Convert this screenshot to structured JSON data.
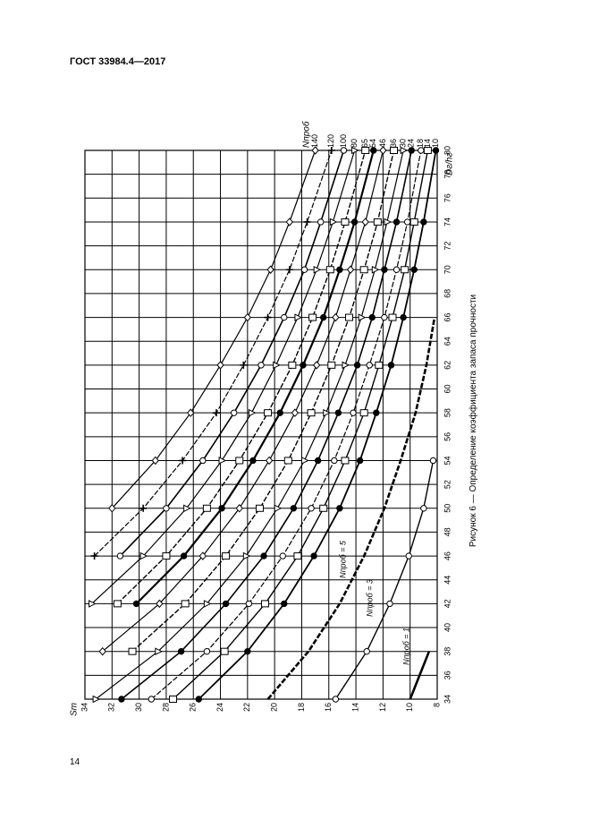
{
  "header": {
    "title": "ГОСТ 33984.4—2017"
  },
  "page_number": "14",
  "caption": "Рисунок 6 — Определение коэффициента запаса прочности",
  "chart_data": {
    "type": "line",
    "x_label": "Dг/hг",
    "y_label": "Sт",
    "legend_title": "Nпроб",
    "x": [
      34,
      38,
      42,
      46,
      50,
      54,
      58,
      62,
      66,
      70,
      74,
      80
    ],
    "xlim": [
      34,
      80
    ],
    "ylim": [
      8,
      34
    ],
    "xticks": [
      34,
      36,
      38,
      40,
      42,
      44,
      46,
      48,
      50,
      52,
      54,
      56,
      58,
      60,
      62,
      64,
      66,
      68,
      70,
      72,
      74,
      76,
      78,
      80
    ],
    "yticks": [
      8,
      10,
      12,
      14,
      16,
      18,
      20,
      22,
      24,
      26,
      28,
      30,
      32,
      34
    ],
    "grid": true,
    "series": [
      {
        "name": "140",
        "color": "#000",
        "marker": "diamond",
        "values": [
          null,
          null,
          null,
          null,
          32.0,
          28.8,
          26.2,
          24.0,
          22.0,
          20.3,
          18.9,
          17.0
        ]
      },
      {
        "name": "120",
        "color": "#000",
        "marker": "plus",
        "values": [
          null,
          null,
          null,
          33.3,
          29.7,
          26.8,
          24.3,
          22.3,
          20.5,
          18.9,
          17.6,
          15.8
        ]
      },
      {
        "name": "100",
        "color": "#000",
        "marker": "circle",
        "values": [
          null,
          null,
          null,
          31.4,
          28.0,
          25.3,
          23.0,
          21.0,
          19.3,
          17.8,
          16.6,
          14.9
        ]
      },
      {
        "name": "80",
        "color": "#000",
        "marker": "triangle",
        "values": [
          null,
          null,
          33.5,
          29.7,
          26.5,
          23.9,
          21.7,
          19.9,
          18.3,
          16.9,
          15.7,
          14.1
        ]
      },
      {
        "name": "65",
        "color": "#000",
        "marker": "square",
        "values": [
          null,
          null,
          31.6,
          28.0,
          25.0,
          22.6,
          20.5,
          18.7,
          17.2,
          15.9,
          14.8,
          13.3
        ]
      },
      {
        "name": "54",
        "color": "#000",
        "marker": "dot",
        "values": [
          null,
          null,
          30.2,
          26.7,
          23.9,
          21.6,
          19.6,
          17.9,
          16.4,
          15.2,
          14.1,
          12.7
        ]
      },
      {
        "name": "46",
        "color": "#000",
        "marker": "diamond",
        "values": [
          null,
          32.7,
          28.5,
          25.3,
          22.6,
          20.4,
          18.5,
          16.9,
          15.5,
          14.4,
          13.3,
          12.0
        ]
      },
      {
        "name": "36",
        "color": "#000",
        "marker": "square",
        "values": [
          null,
          30.5,
          26.6,
          23.6,
          21.1,
          19.0,
          17.3,
          15.8,
          14.5,
          13.4,
          12.4,
          11.2
        ]
      },
      {
        "name": "30",
        "color": "#000",
        "marker": "triangle",
        "values": [
          33.2,
          28.6,
          25.0,
          22.1,
          19.8,
          17.8,
          16.2,
          14.8,
          13.6,
          12.6,
          11.7,
          10.5
        ]
      },
      {
        "name": "24",
        "color": "#000",
        "marker": "dot",
        "values": [
          31.3,
          26.9,
          23.6,
          20.8,
          18.6,
          16.8,
          15.3,
          13.9,
          12.8,
          11.9,
          11.0,
          9.9
        ]
      },
      {
        "name": "18",
        "color": "#000",
        "marker": "circle",
        "values": [
          29.1,
          25.0,
          21.9,
          19.4,
          17.3,
          15.6,
          14.2,
          13.0,
          11.9,
          11.0,
          10.2,
          9.2
        ]
      },
      {
        "name": "14",
        "color": "#000",
        "marker": "square",
        "values": [
          27.5,
          23.7,
          20.7,
          18.3,
          16.4,
          14.8,
          13.4,
          12.3,
          11.3,
          10.4,
          9.7,
          8.7
        ]
      },
      {
        "name": "10",
        "color": "#000",
        "marker": "dot",
        "values": [
          25.6,
          22.0,
          19.3,
          17.1,
          15.2,
          13.7,
          12.5,
          11.4,
          10.5,
          9.7,
          9.0,
          8.1
        ]
      },
      {
        "name": "Nпроб = 5",
        "color": "#000",
        "marker": "none",
        "values": [
          20.5,
          17.5,
          15.2,
          13.4,
          11.9,
          10.7,
          9.6,
          8.8,
          8.2,
          null,
          null,
          null
        ]
      },
      {
        "name": "Nпроб = 3",
        "color": "#000",
        "marker": "circle",
        "values": [
          15.5,
          13.2,
          11.5,
          10.1,
          9.0,
          8.3,
          null,
          null,
          null,
          null,
          null,
          null
        ]
      },
      {
        "name": "Nпроб = 1",
        "color": "#000",
        "marker": "none",
        "values": [
          10.0,
          8.6,
          null,
          null,
          null,
          null,
          null,
          null,
          null,
          null,
          null,
          null
        ]
      }
    ]
  }
}
